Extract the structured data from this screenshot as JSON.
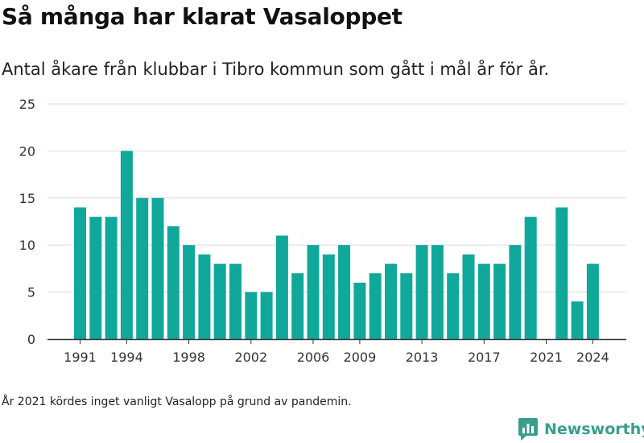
{
  "header": {
    "title": "Så många har klarat Vasaloppet",
    "subtitle": "Antal åkare från klubbar i Tibro kommun som gått i mål år för år."
  },
  "footer": {
    "note": "År 2021 kördes inget vanligt Vasalopp på grund av pandemin.",
    "brand": "Newsworthy"
  },
  "colors": {
    "bar": "#10a89b",
    "grid": "#dddddd",
    "axis": "#333333",
    "brand": "#3a9e8b"
  },
  "chart_data": {
    "type": "bar",
    "x": [
      1991,
      1992,
      1993,
      1994,
      1995,
      1996,
      1997,
      1998,
      1999,
      2000,
      2001,
      2002,
      2003,
      2004,
      2005,
      2006,
      2007,
      2008,
      2009,
      2010,
      2011,
      2012,
      2013,
      2014,
      2015,
      2016,
      2017,
      2018,
      2019,
      2020,
      2021,
      2022,
      2023,
      2024
    ],
    "values": [
      14,
      13,
      13,
      20,
      15,
      15,
      12,
      10,
      9,
      8,
      8,
      5,
      5,
      11,
      7,
      10,
      9,
      10,
      6,
      7,
      8,
      7,
      10,
      10,
      7,
      9,
      8,
      8,
      10,
      13,
      0,
      14,
      4,
      8
    ],
    "xticks": [
      1991,
      1994,
      1998,
      2002,
      2006,
      2009,
      2013,
      2017,
      2021,
      2024
    ],
    "yticks": [
      0,
      5,
      10,
      15,
      20,
      25
    ],
    "ylim": [
      0,
      25
    ],
    "grid": true
  }
}
